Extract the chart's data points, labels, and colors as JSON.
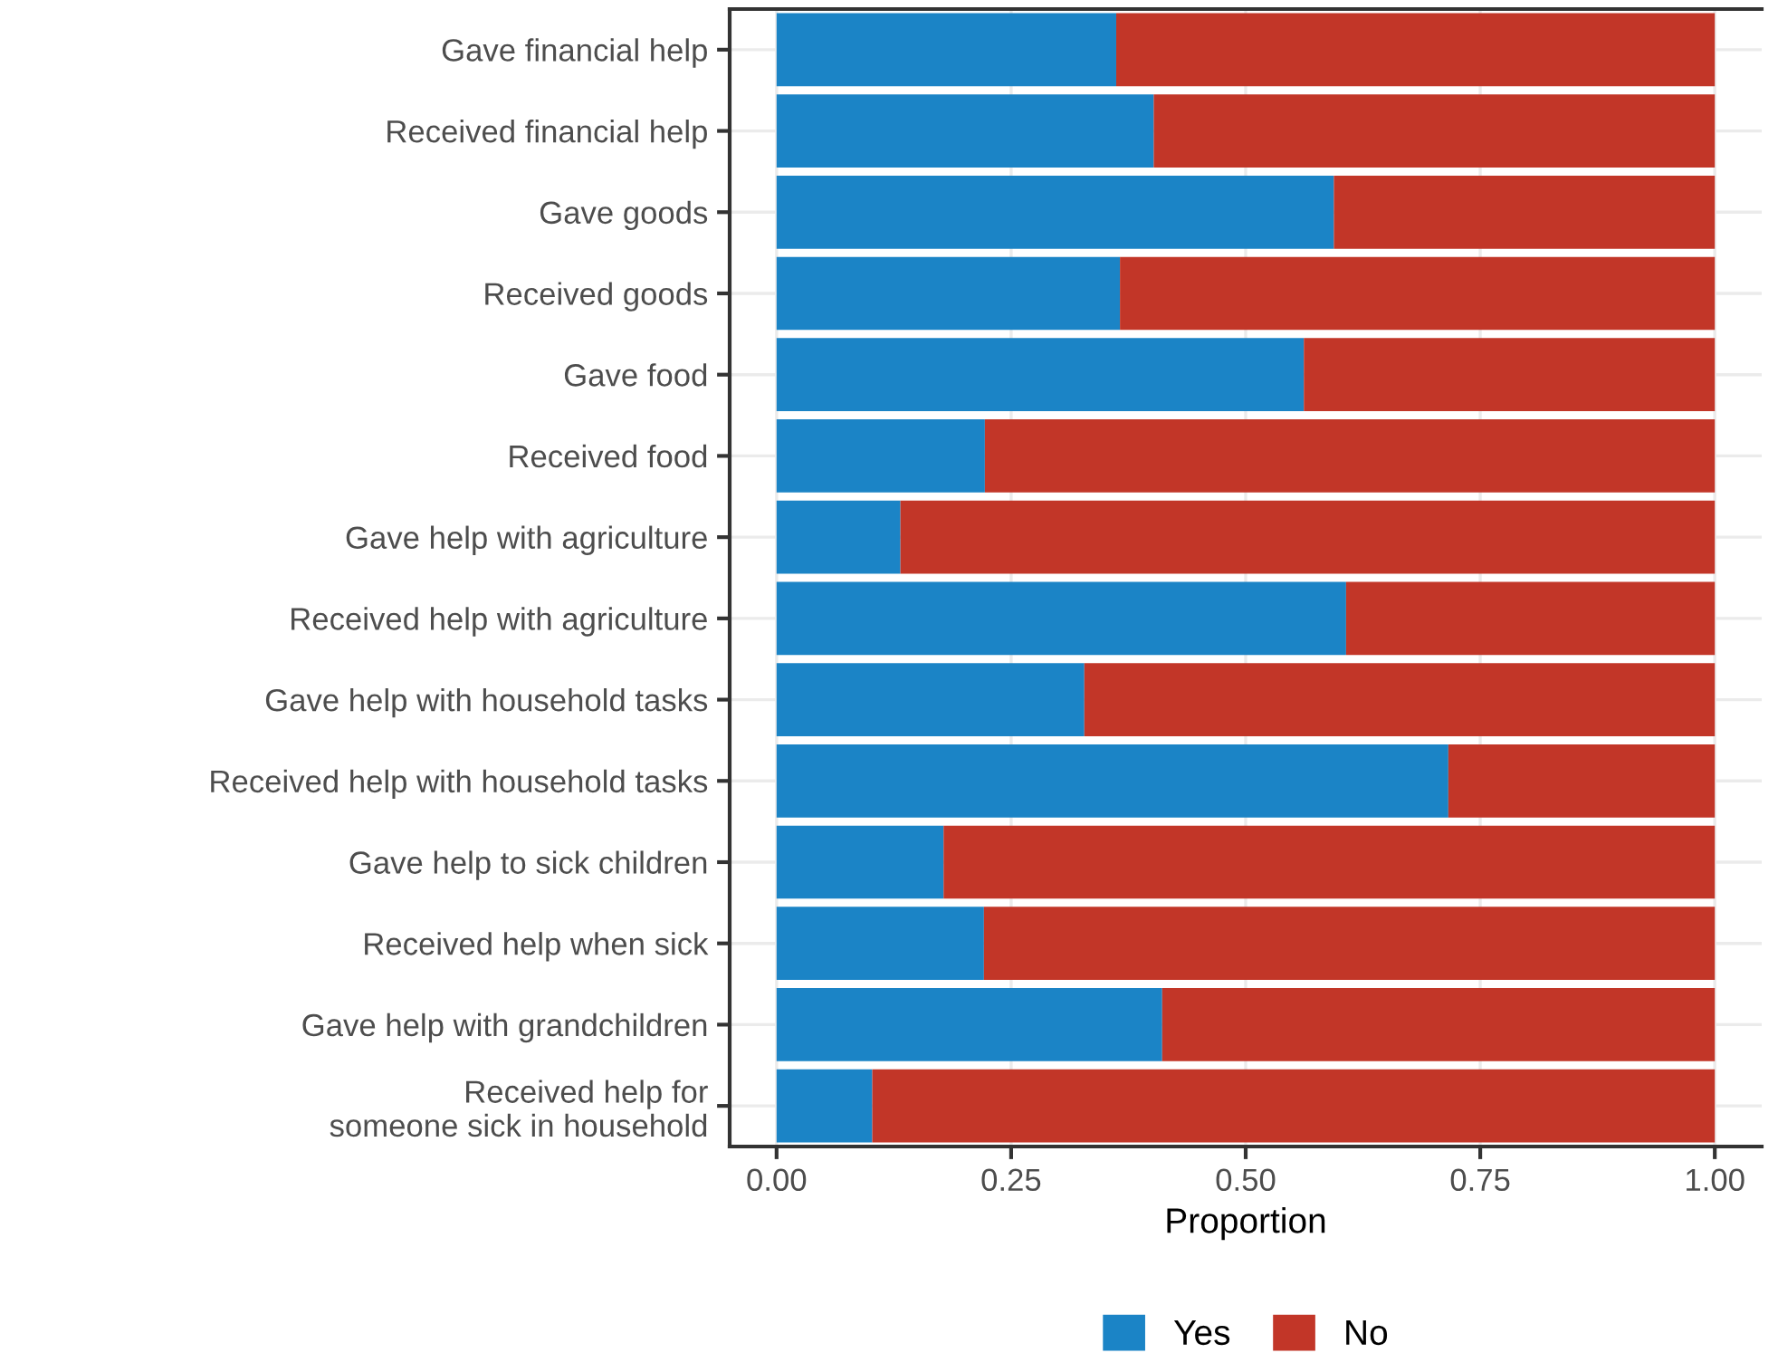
{
  "chart_data": {
    "type": "bar",
    "orientation": "horizontal",
    "stacked": true,
    "xlabel": "Proportion",
    "categories": [
      "Gave financial help",
      "Received financial help",
      "Gave goods",
      "Received goods",
      "Gave food",
      "Received food",
      "Gave help with agriculture",
      "Received help with agriculture",
      "Gave help with household tasks",
      "Received help with household tasks",
      "Gave help to sick children",
      "Received help when sick",
      "Gave help with grandchildren",
      "Received help for\nsomeone sick in household"
    ],
    "series": [
      {
        "name": "Yes",
        "color": "#1b84c6",
        "values": [
          0.362,
          0.402,
          0.594,
          0.366,
          0.562,
          0.222,
          0.132,
          0.607,
          0.328,
          0.716,
          0.178,
          0.221,
          0.411,
          0.102
        ]
      },
      {
        "name": "No",
        "color": "#c23628",
        "values": [
          0.638,
          0.598,
          0.406,
          0.634,
          0.438,
          0.778,
          0.868,
          0.393,
          0.672,
          0.284,
          0.822,
          0.779,
          0.589,
          0.898
        ]
      }
    ],
    "xlim": [
      -0.05,
      1.05
    ],
    "xticks": [
      {
        "value": 0,
        "label": "0.00"
      },
      {
        "value": 0.25,
        "label": "0.25"
      },
      {
        "value": 0.5,
        "label": "0.50"
      },
      {
        "value": 0.75,
        "label": "0.75"
      },
      {
        "value": 1,
        "label": "1.00"
      }
    ],
    "grid": true,
    "legend": "bottom"
  }
}
